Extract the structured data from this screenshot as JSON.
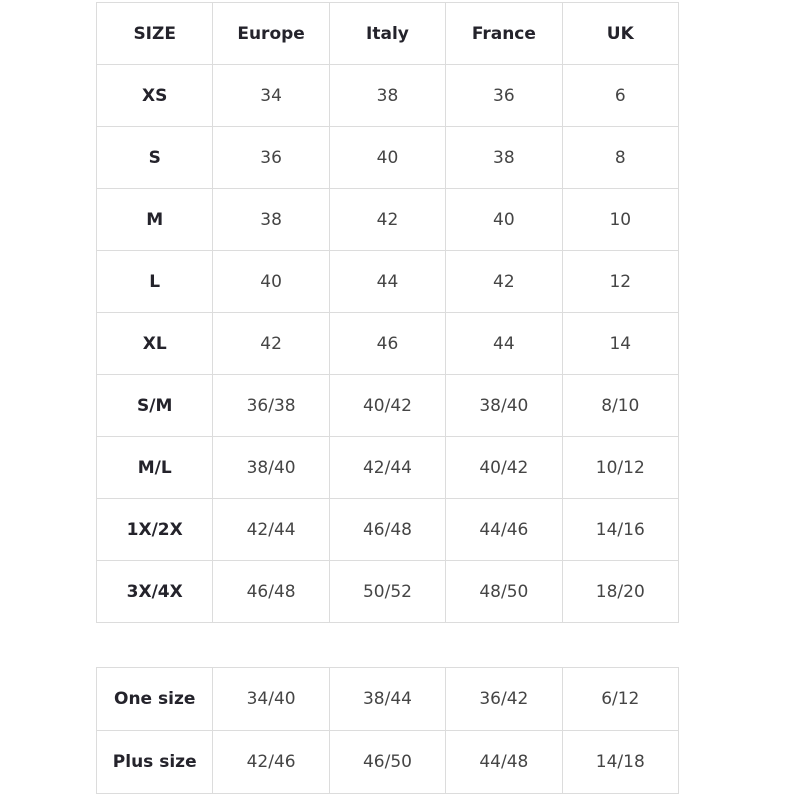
{
  "main_table": {
    "headers": [
      "SIZE",
      "Europe",
      "Italy",
      "France",
      "UK"
    ],
    "rows": [
      [
        "XS",
        "34",
        "38",
        "36",
        "6"
      ],
      [
        "S",
        "36",
        "40",
        "38",
        "8"
      ],
      [
        "M",
        "38",
        "42",
        "40",
        "10"
      ],
      [
        "L",
        "40",
        "44",
        "42",
        "12"
      ],
      [
        "XL",
        "42",
        "46",
        "44",
        "14"
      ],
      [
        "S/M",
        "36/38",
        "40/42",
        "38/40",
        "8/10"
      ],
      [
        "M/L",
        "38/40",
        "42/44",
        "40/42",
        "10/12"
      ],
      [
        "1X/2X",
        "42/44",
        "46/48",
        "44/46",
        "14/16"
      ],
      [
        "3X/4X",
        "46/48",
        "50/52",
        "48/50",
        "18/20"
      ]
    ]
  },
  "secondary_table": {
    "rows": [
      [
        "One size",
        "34/40",
        "38/44",
        "36/42",
        "6/12"
      ],
      [
        "Plus size",
        "42/46",
        "46/50",
        "44/48",
        "14/18"
      ]
    ]
  },
  "colors": {
    "border": "#dcdcdc",
    "label_text": "#24232b",
    "value_text": "#454545"
  }
}
